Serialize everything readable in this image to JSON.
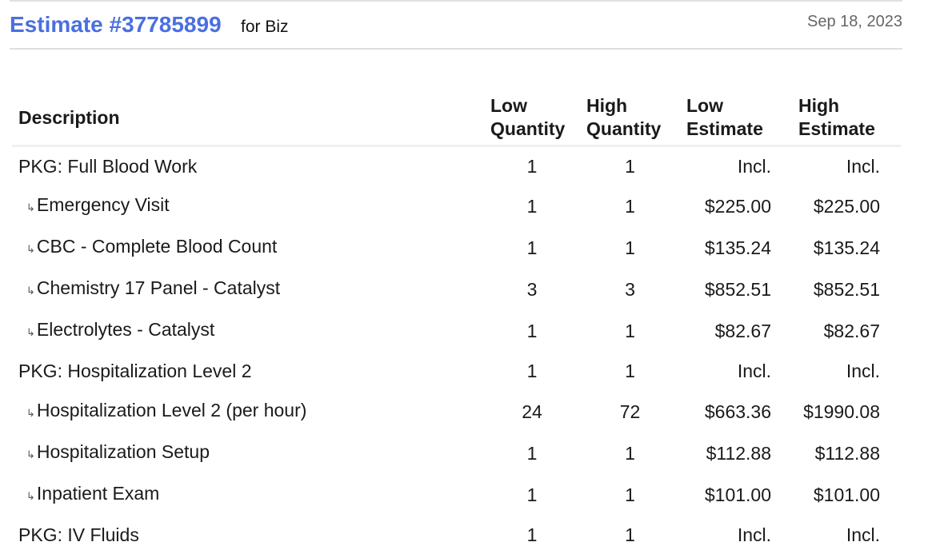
{
  "header": {
    "title": "Estimate #37785899",
    "for_label": "for Biz",
    "date": "Sep 18, 2023"
  },
  "colors": {
    "accent": "#4a6fe0"
  },
  "table": {
    "columns": {
      "description": "Description",
      "low_quantity": [
        "Low",
        "Quantity"
      ],
      "high_quantity": [
        "High",
        "Quantity"
      ],
      "low_estimate": [
        "Low",
        "Estimate"
      ],
      "high_estimate": [
        "High",
        "Estimate"
      ]
    },
    "sub_item_icon": "↳",
    "rows": [
      {
        "description": "PKG: Full Blood Work",
        "sub": false,
        "low_qty": "1",
        "high_qty": "1",
        "low_est": "Incl.",
        "high_est": "Incl."
      },
      {
        "description": "Emergency Visit",
        "sub": true,
        "low_qty": "1",
        "high_qty": "1",
        "low_est": "$225.00",
        "high_est": "$225.00"
      },
      {
        "description": "CBC - Complete Blood Count",
        "sub": true,
        "low_qty": "1",
        "high_qty": "1",
        "low_est": "$135.24",
        "high_est": "$135.24"
      },
      {
        "description": "Chemistry 17 Panel - Catalyst",
        "sub": true,
        "low_qty": "3",
        "high_qty": "3",
        "low_est": "$852.51",
        "high_est": "$852.51"
      },
      {
        "description": "Electrolytes - Catalyst",
        "sub": true,
        "low_qty": "1",
        "high_qty": "1",
        "low_est": "$82.67",
        "high_est": "$82.67"
      },
      {
        "description": "PKG: Hospitalization Level 2",
        "sub": false,
        "low_qty": "1",
        "high_qty": "1",
        "low_est": "Incl.",
        "high_est": "Incl."
      },
      {
        "description": "Hospitalization Level 2 (per hour)",
        "sub": true,
        "low_qty": "24",
        "high_qty": "72",
        "low_est": "$663.36",
        "high_est": "$1990.08"
      },
      {
        "description": "Hospitalization Setup",
        "sub": true,
        "low_qty": "1",
        "high_qty": "1",
        "low_est": "$112.88",
        "high_est": "$112.88"
      },
      {
        "description": "Inpatient Exam",
        "sub": true,
        "low_qty": "1",
        "high_qty": "1",
        "low_est": "$101.00",
        "high_est": "$101.00"
      },
      {
        "description": "PKG: IV Fluids",
        "sub": false,
        "low_qty": "1",
        "high_qty": "1",
        "low_est": "Incl.",
        "high_est": "Incl."
      }
    ]
  }
}
